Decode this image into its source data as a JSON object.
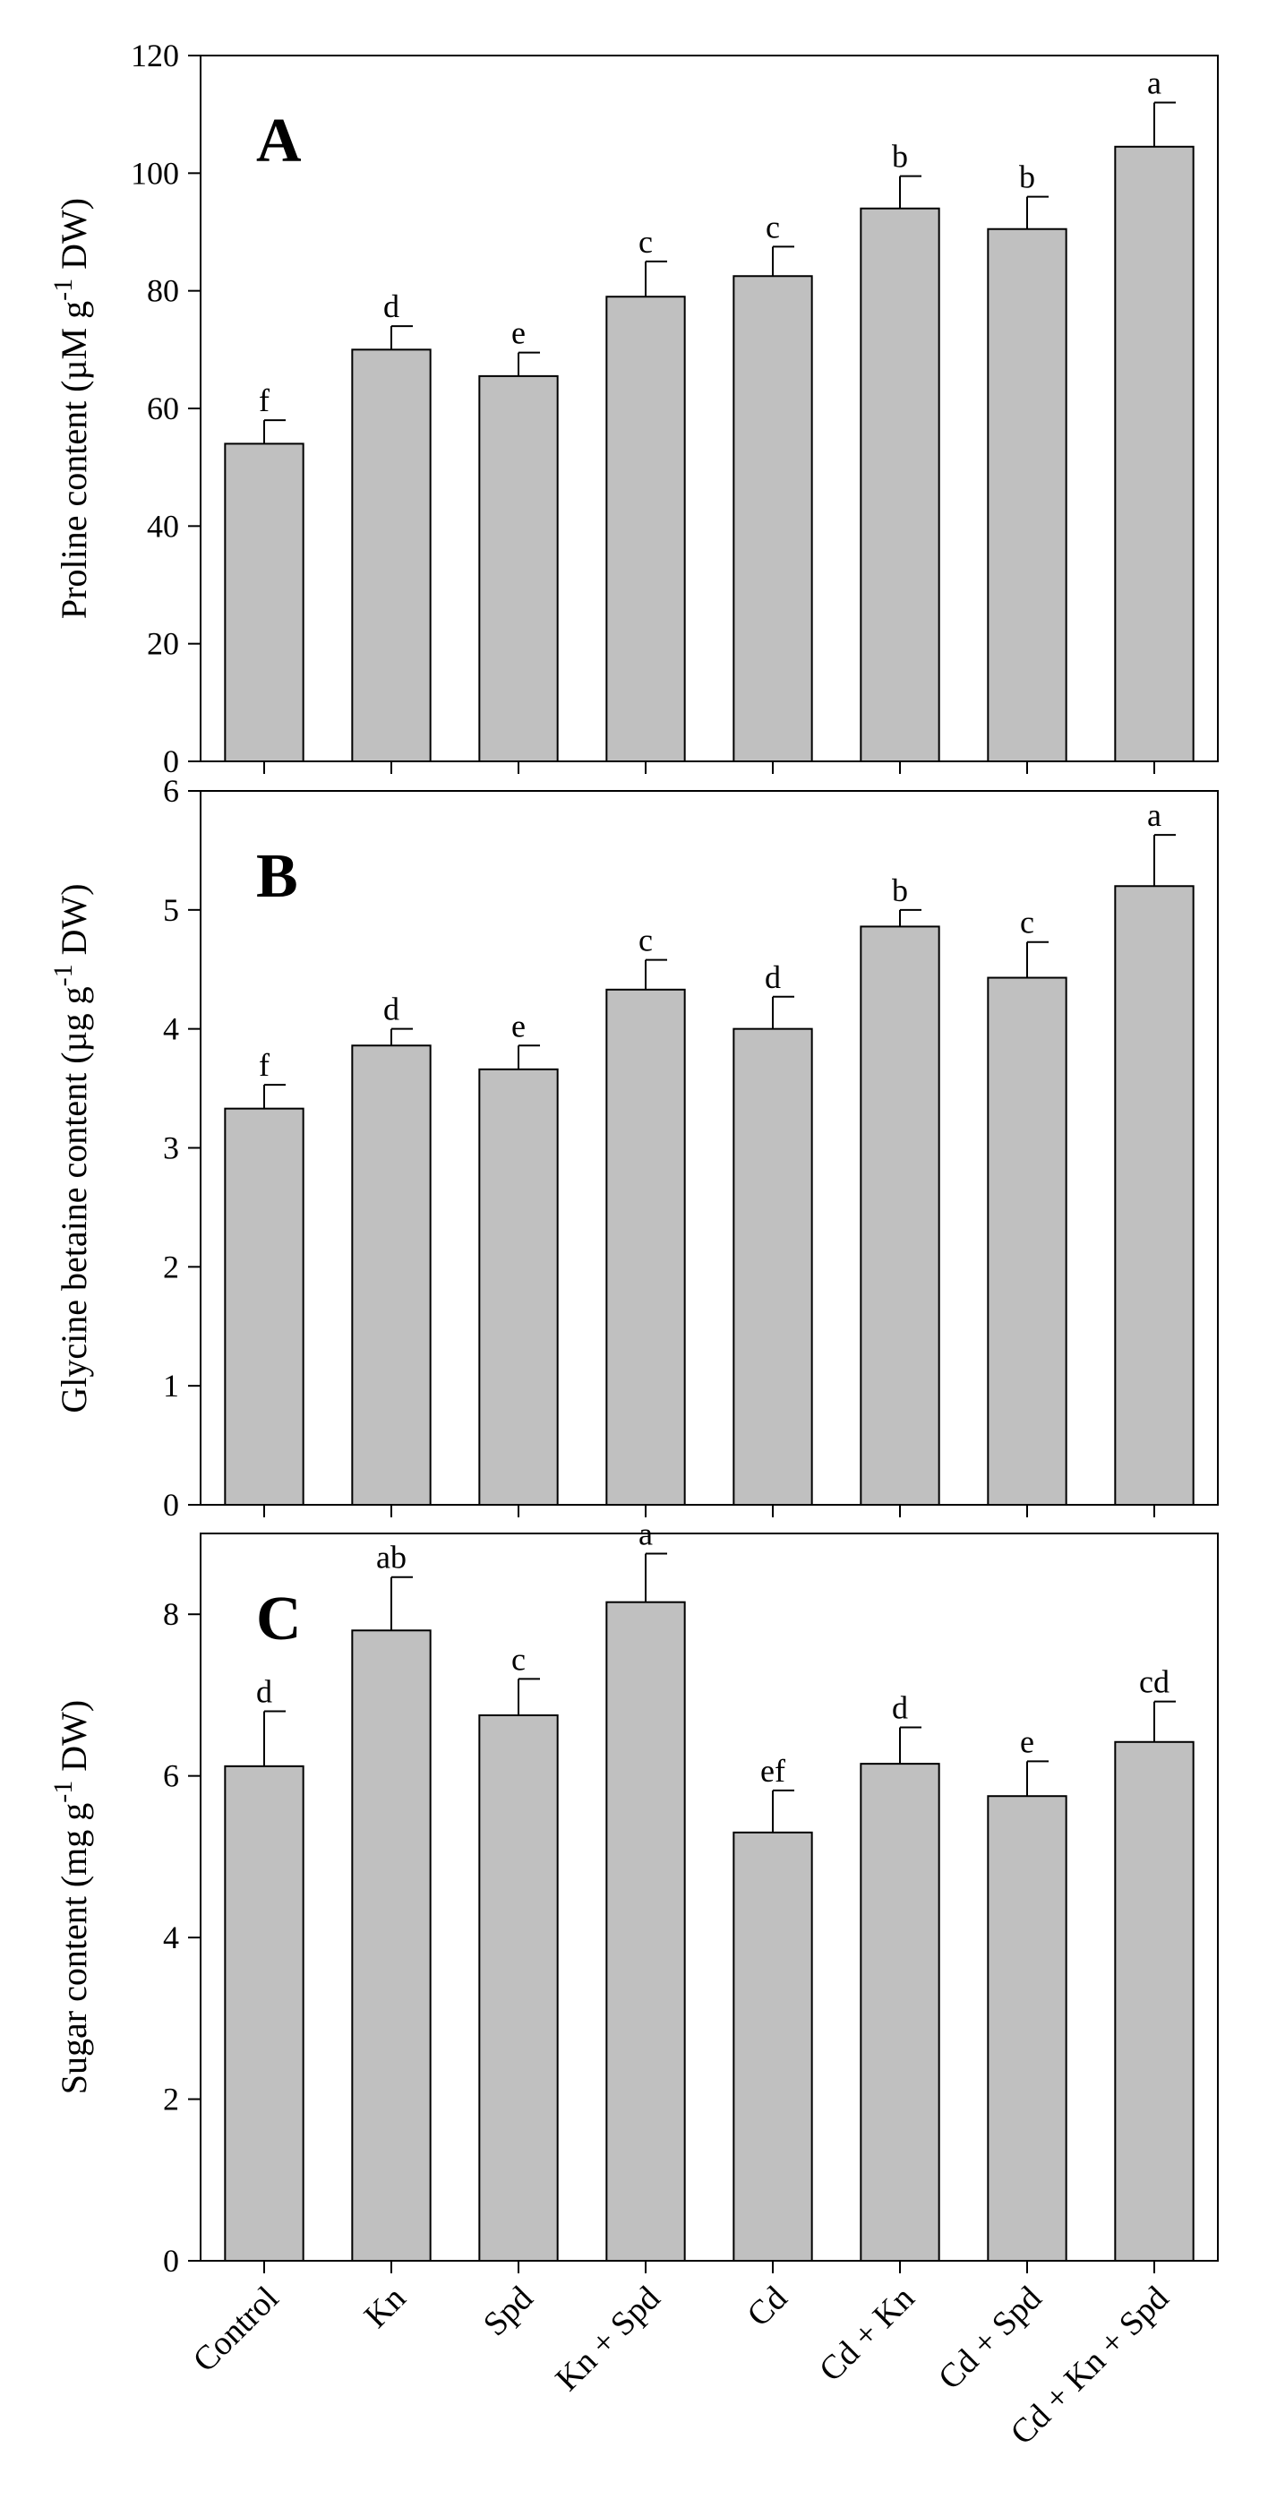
{
  "colors": {
    "bar": "#c0c0c0",
    "stroke": "#000000"
  },
  "chart_data": [
    {
      "type": "bar",
      "panel_label": "A",
      "categories": [
        "Control",
        "Kn",
        "Spd",
        "Kn + Spd",
        "Cd",
        "Cd + Kn",
        "Cd + Spd",
        "Cd + Kn + Spd"
      ],
      "values": [
        54,
        70,
        65.5,
        79,
        82.5,
        94,
        90.5,
        104.5
      ],
      "errors": [
        4,
        4,
        4,
        6,
        5,
        5.5,
        5.5,
        7.5
      ],
      "sig_letters": [
        "f",
        "d",
        "e",
        "c",
        "c",
        "b",
        "b",
        "a"
      ],
      "ylabel": {
        "main": "Proline content (µM g",
        "sup": "-1",
        "unit": " DW)"
      },
      "yticks": [
        "0",
        "20",
        "40",
        "60",
        "80",
        "100",
        "120"
      ],
      "ylim": [
        0,
        120
      ],
      "grid": false
    },
    {
      "type": "bar",
      "panel_label": "B",
      "categories": [
        "Control",
        "Kn",
        "Spd",
        "Kn + Spd",
        "Cd",
        "Cd + Kn",
        "Cd + Spd",
        "Cd + Kn + Spd"
      ],
      "values": [
        3.33,
        3.86,
        3.66,
        4.33,
        4.0,
        4.86,
        4.43,
        5.2
      ],
      "errors": [
        0.2,
        0.14,
        0.2,
        0.25,
        0.27,
        0.14,
        0.3,
        0.43
      ],
      "sig_letters": [
        "f",
        "d",
        "e",
        "c",
        "d",
        "b",
        "c",
        "a"
      ],
      "ylabel": {
        "main": "Glycine betaine content  (µg g",
        "sup": "-1",
        "unit": " DW)"
      },
      "yticks": [
        "0",
        "1",
        "2",
        "3",
        "4",
        "5",
        "6"
      ],
      "ylim": [
        0,
        6
      ],
      "grid": false
    },
    {
      "type": "bar",
      "panel_label": "C",
      "categories": [
        "Control",
        "Kn",
        "Spd",
        "Kn + Spd",
        "Cd",
        "Cd + Kn",
        "Cd + Spd",
        "Cd + Kn + Spd"
      ],
      "values": [
        6.12,
        7.8,
        6.75,
        8.15,
        5.3,
        6.15,
        5.75,
        6.42
      ],
      "errors": [
        0.68,
        0.66,
        0.45,
        0.6,
        0.52,
        0.45,
        0.43,
        0.5
      ],
      "sig_letters": [
        "d",
        "ab",
        "c",
        "a",
        "ef",
        "d",
        "e",
        "cd"
      ],
      "ylabel": {
        "main": "Sugar content (mg g",
        "sup": "-1",
        "unit": " DW)"
      },
      "yticks": [
        "0",
        "2",
        "4",
        "6",
        "8"
      ],
      "ylim": [
        0,
        9
      ],
      "grid": false
    }
  ]
}
